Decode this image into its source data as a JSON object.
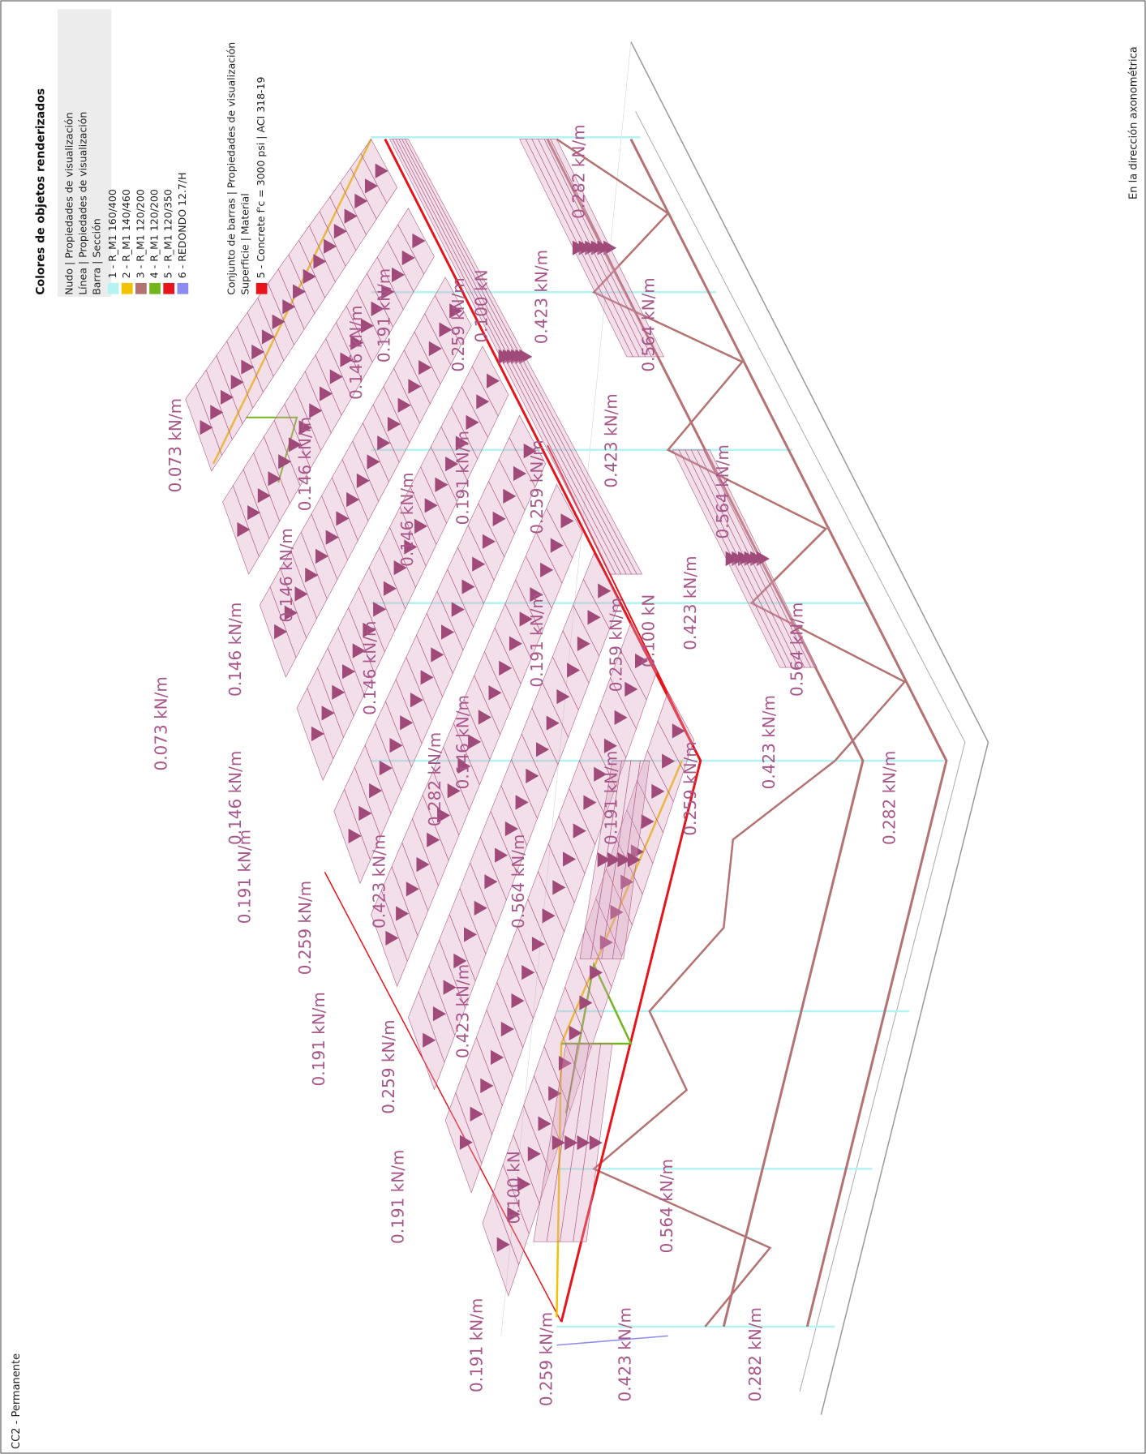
{
  "header": {
    "load_case": "CC2 - Permanente",
    "view": "En la dirección axonométrica"
  },
  "legend": {
    "title": "Colores de objetos renderizados",
    "rows": [
      "Nudo | Propiedades de visualización",
      "Línea | Propiedades de visualización",
      "Barra | Sección"
    ],
    "sections": [
      {
        "label": "1 - R_M1 160/400",
        "color": "#b3f3f3"
      },
      {
        "label": "2 - R_M1 140/460",
        "color": "#f2c200"
      },
      {
        "label": "3 - R_M1 120/200",
        "color": "#b47272"
      },
      {
        "label": "4 - R_M1 120/200",
        "color": "#74b41e"
      },
      {
        "label": "5 - R_M1 120/350",
        "color": "#e8141c"
      },
      {
        "label": "6 - REDONDO 12.7/H",
        "color": "#8c8cf0"
      }
    ],
    "group_rows": [
      "Conjunto de barras | Propiedades de visualización",
      "Superficie | Material"
    ],
    "materials": [
      {
        "label": "5 - Concrete f'c = 3000 psi | ACI 318-19",
        "color": "#e8141c"
      }
    ]
  },
  "load_labels": [
    "0.073 kN/m",
    "0.073 kN/m",
    "0.146 kN/m",
    "0.146 kN/m",
    "0.146 kN/m",
    "0.146 kN/m",
    "0.146 kN/m",
    "0.146 kN/m",
    "0.146 kN/m",
    "0.146 kN/m",
    "0.191 kN/m",
    "0.191 kN/m",
    "0.191 kN/m",
    "0.191 kN/m",
    "0.191 kN/m",
    "0.191 kN/m",
    "0.191 kN/m",
    "0.191 kN/m",
    "0.259 kN/m",
    "0.259 kN/m",
    "0.259 kN/m",
    "0.259 kN/m",
    "0.259 kN/m",
    "0.259 kN/m",
    "0.259 kN/m",
    "0.423 kN/m",
    "0.423 kN/m",
    "0.423 kN/m",
    "0.423 kN/m",
    "0.423 kN/m",
    "0.423 kN/m",
    "0.423 kN/m",
    "0.564 kN/m",
    "0.564 kN/m",
    "0.564 kN/m",
    "0.564 kN/m",
    "0.564 kN/m",
    "0.282 kN/m",
    "0.282 kN/m",
    "0.282 kN/m",
    "0.282 kN/m",
    "0.100 kN",
    "0.100 kN",
    "0.100 kN"
  ]
}
